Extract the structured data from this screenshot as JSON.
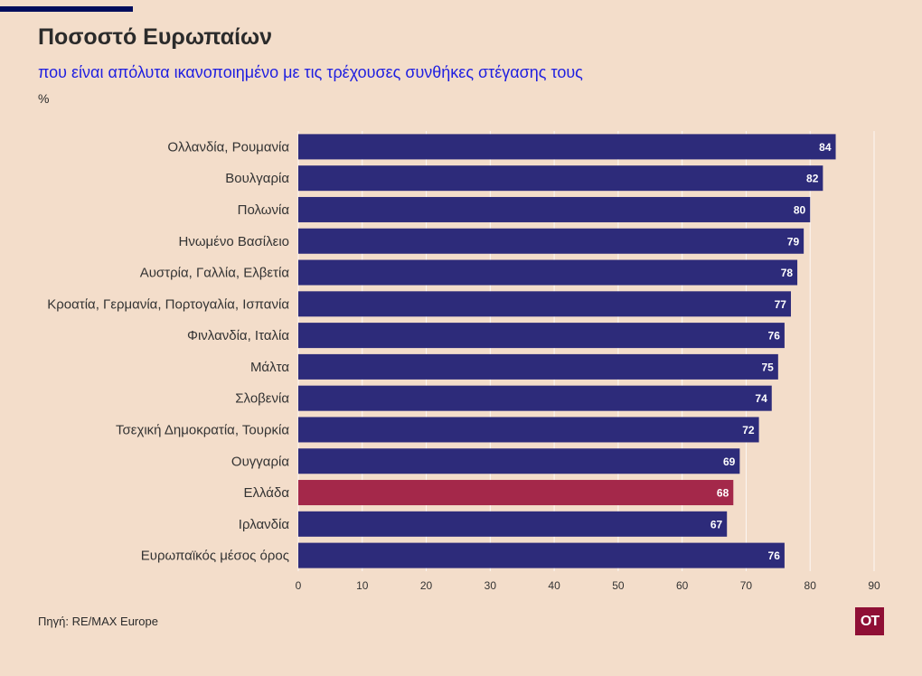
{
  "header": {
    "title": "Ποσοστό Ευρωπαίων",
    "subtitle": "που είναι απόλυτα ικανοποιημένο με τις τρέχουσες συνθήκες στέγασης τους",
    "unit": "%"
  },
  "footer": {
    "source": "Πηγή: RE/MAX Europe",
    "logo_text": "OT"
  },
  "colors": {
    "bar_default": "#2d2b7a",
    "bar_highlight": "#a4284a",
    "grid": "#ffffff",
    "logo_bg": "#8f0f35"
  },
  "chart_data": {
    "type": "bar",
    "orientation": "horizontal",
    "title": "Ποσοστό Ευρωπαίων",
    "subtitle": "που είναι απόλυτα ικανοποιημένο με τις τρέχουσες συνθήκες στέγασης τους",
    "xlabel": "",
    "ylabel": "%",
    "xlim": [
      0,
      90
    ],
    "xticks": [
      0,
      10,
      20,
      30,
      40,
      50,
      60,
      70,
      80,
      90
    ],
    "grid": true,
    "categories": [
      "Ολλανδία, Ρουμανία",
      "Βουλγαρία",
      "Πολωνία",
      "Ηνωμένο Βασίλειο",
      "Αυστρία, Γαλλία, Ελβετία",
      "Κροατία, Γερμανία, Πορτογαλία, Ισπανία",
      "Φινλανδία, Ιταλία",
      "Μάλτα",
      "Σλοβενία",
      "Τσεχική Δημοκρατία, Τουρκία",
      "Ουγγαρία",
      "Ελλάδα",
      "Ιρλανδία",
      "Ευρωπαϊκός μέσος όρος"
    ],
    "values": [
      84,
      82,
      80,
      79,
      78,
      77,
      76,
      75,
      74,
      72,
      69,
      68,
      67,
      76
    ],
    "highlight": [
      "Ελλάδα"
    ]
  }
}
